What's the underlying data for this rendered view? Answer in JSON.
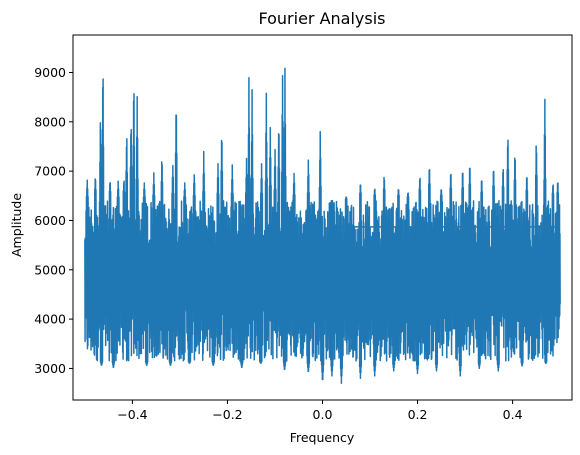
{
  "chart_data": {
    "type": "line",
    "title": "Fourier Analysis",
    "xlabel": "Frequency",
    "ylabel": "Amplitude",
    "xlim": [
      -0.525,
      0.525
    ],
    "ylim": [
      2360,
      9760
    ],
    "grid": false,
    "series_color": "#1f77b4",
    "xticks": [
      {
        "value": -0.4,
        "label": "−0.4"
      },
      {
        "value": -0.2,
        "label": "−0.2"
      },
      {
        "value": 0.0,
        "label": "0.0"
      },
      {
        "value": 0.2,
        "label": "0.2"
      },
      {
        "value": 0.4,
        "label": "0.4"
      }
    ],
    "yticks": [
      {
        "value": 3000,
        "label": "3000"
      },
      {
        "value": 4000,
        "label": "4000"
      },
      {
        "value": 5000,
        "label": "5000"
      },
      {
        "value": 6000,
        "label": "6000"
      },
      {
        "value": 7000,
        "label": "7000"
      },
      {
        "value": 8000,
        "label": "8000"
      },
      {
        "value": 9000,
        "label": "9000"
      }
    ],
    "x_range": [
      -0.5,
      0.5
    ],
    "band_low": 3150,
    "band_high": 6400,
    "peaks": [
      {
        "x": -0.495,
        "y": 6850
      },
      {
        "x": -0.478,
        "y": 7000
      },
      {
        "x": -0.467,
        "y": 8400
      },
      {
        "x": -0.462,
        "y": 9500
      },
      {
        "x": -0.447,
        "y": 6900
      },
      {
        "x": -0.43,
        "y": 6800
      },
      {
        "x": -0.418,
        "y": 6900
      },
      {
        "x": -0.412,
        "y": 8000
      },
      {
        "x": -0.403,
        "y": 8300
      },
      {
        "x": -0.397,
        "y": 9200
      },
      {
        "x": -0.39,
        "y": 8600
      },
      {
        "x": -0.375,
        "y": 6800
      },
      {
        "x": -0.355,
        "y": 7000
      },
      {
        "x": -0.338,
        "y": 7400
      },
      {
        "x": -0.315,
        "y": 7200
      },
      {
        "x": -0.308,
        "y": 8900
      },
      {
        "x": -0.29,
        "y": 6800
      },
      {
        "x": -0.27,
        "y": 7000
      },
      {
        "x": -0.25,
        "y": 7400
      },
      {
        "x": -0.22,
        "y": 7200
      },
      {
        "x": -0.212,
        "y": 8100
      },
      {
        "x": -0.19,
        "y": 7200
      },
      {
        "x": -0.16,
        "y": 7300
      },
      {
        "x": -0.155,
        "y": 9000
      },
      {
        "x": -0.148,
        "y": 8700
      },
      {
        "x": -0.128,
        "y": 7200
      },
      {
        "x": -0.118,
        "y": 8700
      },
      {
        "x": -0.11,
        "y": 8000
      },
      {
        "x": -0.1,
        "y": 7600
      },
      {
        "x": -0.092,
        "y": 8200
      },
      {
        "x": -0.084,
        "y": 9350
      },
      {
        "x": -0.079,
        "y": 9250
      },
      {
        "x": -0.06,
        "y": 7000
      },
      {
        "x": -0.03,
        "y": 7300
      },
      {
        "x": -0.005,
        "y": 7900
      },
      {
        "x": 0.02,
        "y": 6400
      },
      {
        "x": 0.05,
        "y": 6500
      },
      {
        "x": 0.08,
        "y": 6800
      },
      {
        "x": 0.11,
        "y": 6700
      },
      {
        "x": 0.13,
        "y": 7000
      },
      {
        "x": 0.16,
        "y": 6700
      },
      {
        "x": 0.18,
        "y": 6600
      },
      {
        "x": 0.205,
        "y": 7000
      },
      {
        "x": 0.225,
        "y": 7300
      },
      {
        "x": 0.25,
        "y": 6700
      },
      {
        "x": 0.27,
        "y": 7100
      },
      {
        "x": 0.295,
        "y": 7100
      },
      {
        "x": 0.31,
        "y": 7300
      },
      {
        "x": 0.335,
        "y": 6900
      },
      {
        "x": 0.36,
        "y": 7200
      },
      {
        "x": 0.38,
        "y": 7200
      },
      {
        "x": 0.39,
        "y": 8000
      },
      {
        "x": 0.405,
        "y": 7500
      },
      {
        "x": 0.43,
        "y": 7000
      },
      {
        "x": 0.45,
        "y": 7800
      },
      {
        "x": 0.468,
        "y": 8700
      },
      {
        "x": 0.485,
        "y": 6800
      },
      {
        "x": 0.495,
        "y": 6850
      }
    ],
    "troughs": [
      {
        "x": -0.465,
        "y": 3050
      },
      {
        "x": -0.44,
        "y": 3000
      },
      {
        "x": -0.41,
        "y": 3200
      },
      {
        "x": -0.37,
        "y": 3050
      },
      {
        "x": -0.32,
        "y": 3050
      },
      {
        "x": -0.28,
        "y": 3100
      },
      {
        "x": -0.23,
        "y": 3050
      },
      {
        "x": -0.17,
        "y": 3000
      },
      {
        "x": -0.13,
        "y": 3100
      },
      {
        "x": -0.08,
        "y": 2950
      },
      {
        "x": -0.03,
        "y": 2900
      },
      {
        "x": 0.0,
        "y": 2700
      },
      {
        "x": 0.02,
        "y": 2850
      },
      {
        "x": 0.04,
        "y": 2700
      },
      {
        "x": 0.08,
        "y": 2800
      },
      {
        "x": 0.11,
        "y": 2850
      },
      {
        "x": 0.15,
        "y": 2950
      },
      {
        "x": 0.2,
        "y": 2900
      },
      {
        "x": 0.24,
        "y": 2950
      },
      {
        "x": 0.29,
        "y": 2850
      },
      {
        "x": 0.33,
        "y": 3000
      },
      {
        "x": 0.37,
        "y": 2950
      },
      {
        "x": 0.42,
        "y": 3050
      },
      {
        "x": 0.47,
        "y": 3100
      }
    ]
  }
}
